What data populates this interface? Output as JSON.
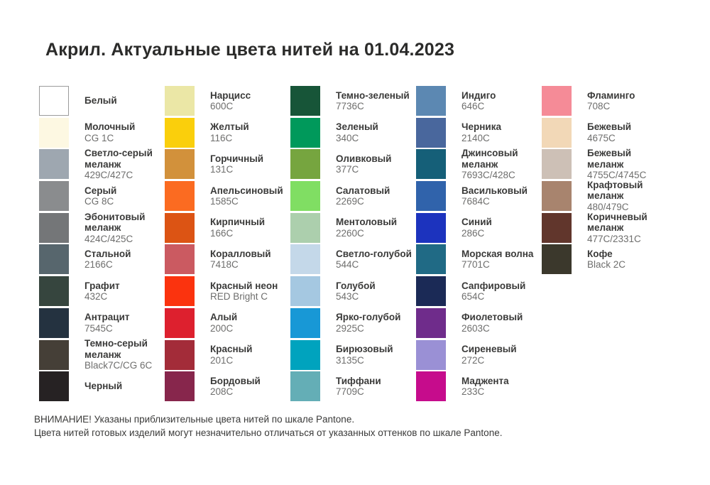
{
  "title": "Акрил. Актуальные цвета нитей на 01.04.2023",
  "footer": {
    "line1": "ВНИМАНИЕ! Указаны приблизительные цвета нитей по шкале Pantone.",
    "line2": "Цвета нитей готовых изделий могут незначительно отличаться от указанных оттенков по шкале Pantone."
  },
  "columns": [
    {
      "items": [
        {
          "name": "Белый",
          "code": "",
          "color": "#FFFFFF",
          "bordered": true
        },
        {
          "name": "Молочный",
          "code": "CG 1C",
          "color": "#FDF8E2"
        },
        {
          "name": "Светло-серый\nмеланж",
          "code": "429C/427C",
          "color": "#9EA7B0"
        },
        {
          "name": "Серый",
          "code": "CG 8C",
          "color": "#8A8C8E"
        },
        {
          "name": "Эбонитовый\nмеланж",
          "code": "424C/425C",
          "color": "#747678"
        },
        {
          "name": "Стальной",
          "code": "2166C",
          "color": "#57666D"
        },
        {
          "name": "Графит",
          "code": "432C",
          "color": "#36453E"
        },
        {
          "name": "Антрацит",
          "code": "7545C",
          "color": "#243240"
        },
        {
          "name": "Темно-серый\nмеланж",
          "code": "Black7C/CG 6C",
          "color": "#453F37"
        },
        {
          "name": "Черный",
          "code": "",
          "color": "#262223"
        }
      ]
    },
    {
      "items": [
        {
          "name": "Нарцисс",
          "code": "600C",
          "color": "#EBE7A6"
        },
        {
          "name": "Желтый",
          "code": "116C",
          "color": "#FACF0C"
        },
        {
          "name": "Горчичный",
          "code": "131C",
          "color": "#D2913B"
        },
        {
          "name": "Апельсиновый",
          "code": "1585C",
          "color": "#FB6B21"
        },
        {
          "name": "Кирпичный",
          "code": "166C",
          "color": "#DC5414"
        },
        {
          "name": "Коралловый",
          "code": "7418C",
          "color": "#CB5A61"
        },
        {
          "name": "Красный неон",
          "code": "RED Bright C",
          "color": "#FB330E"
        },
        {
          "name": "Алый",
          "code": "200C",
          "color": "#DD202E"
        },
        {
          "name": "Красный",
          "code": "201C",
          "color": "#A32C39"
        },
        {
          "name": "Бордовый",
          "code": "208C",
          "color": "#87264C"
        }
      ]
    },
    {
      "items": [
        {
          "name": "Темно-зеленый",
          "code": "7736C",
          "color": "#175538"
        },
        {
          "name": "Зеленый",
          "code": "340C",
          "color": "#00995B"
        },
        {
          "name": "Оливковый",
          "code": "377C",
          "color": "#76A53F"
        },
        {
          "name": "Салатовый",
          "code": "2269C",
          "color": "#80DE63"
        },
        {
          "name": "Ментоловый",
          "code": "2260C",
          "color": "#ACCFAD"
        },
        {
          "name": "Светло-голубой",
          "code": "544C",
          "color": "#C4D8E9"
        },
        {
          "name": "Голубой",
          "code": "543C",
          "color": "#A5C8E1"
        },
        {
          "name": "Ярко-голубой",
          "code": "2925C",
          "color": "#1898D6"
        },
        {
          "name": "Бирюзовый",
          "code": "3135C",
          "color": "#00A3BE"
        },
        {
          "name": "Тиффани",
          "code": "7709C",
          "color": "#64AEB6"
        }
      ]
    },
    {
      "items": [
        {
          "name": "Индиго",
          "code": "646C",
          "color": "#5C88B2"
        },
        {
          "name": "Черника",
          "code": "2140C",
          "color": "#49679D"
        },
        {
          "name": "Джинсовый\nмеланж",
          "code": "7693C/428C",
          "color": "#155F78"
        },
        {
          "name": "Васильковый",
          "code": "7684C",
          "color": "#3063AB"
        },
        {
          "name": "Синий",
          "code": "286C",
          "color": "#1C33BE"
        },
        {
          "name": "Морская волна",
          "code": "7701C",
          "color": "#206A85"
        },
        {
          "name": "Сапфировый",
          "code": "654C",
          "color": "#1B2A56"
        },
        {
          "name": "Фиолетовый",
          "code": "2603C",
          "color": "#6F2C8B"
        },
        {
          "name": "Сиреневый",
          "code": "272C",
          "color": "#9A90D5"
        },
        {
          "name": "Маджента",
          "code": "233C",
          "color": "#C60C8C"
        }
      ]
    },
    {
      "items": [
        {
          "name": "Фламинго",
          "code": "708C",
          "color": "#F58B97"
        },
        {
          "name": "Бежевый",
          "code": "4675C",
          "color": "#F2D8B7"
        },
        {
          "name": "Бежевый\nмеланж",
          "code": "4755C/4745C",
          "color": "#CDC0B6"
        },
        {
          "name": "Крафтовый меланж",
          "code": "480/479C",
          "color": "#A8846E"
        },
        {
          "name": "Коричневый\nмеланж",
          "code": "477C/2331C",
          "color": "#61362C"
        },
        {
          "name": "Кофе",
          "code": "Black 2C",
          "color": "#3B382C"
        }
      ]
    }
  ]
}
